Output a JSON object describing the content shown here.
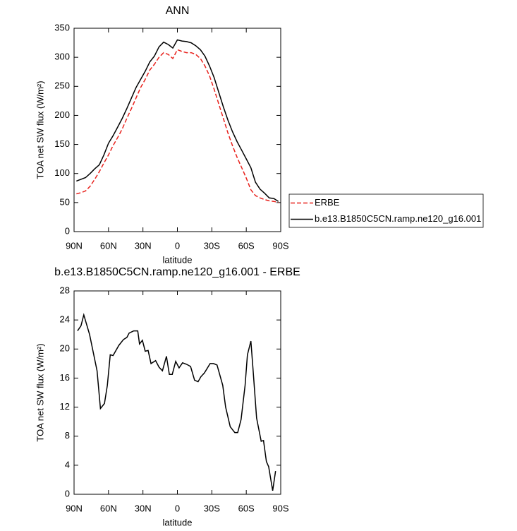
{
  "chart_data": [
    {
      "type": "line",
      "title": "ANN",
      "xlabel": "latitude",
      "ylabel": "TOA net SW flux (W/m²)",
      "x": [
        88,
        84,
        80,
        76,
        72,
        68,
        64,
        60,
        56,
        52,
        48,
        44,
        40,
        36,
        32,
        28,
        24,
        20,
        16,
        12,
        8,
        4,
        0,
        -4,
        -8,
        -12,
        -16,
        -20,
        -24,
        -28,
        -32,
        -36,
        -40,
        -44,
        -48,
        -52,
        -56,
        -60,
        -64,
        -68,
        -72,
        -76,
        -80,
        -84,
        -88
      ],
      "series": [
        {
          "name": "ERBE",
          "color": "#e8211c",
          "dash": true,
          "values": [
            65,
            67,
            70,
            78,
            90,
            103,
            118,
            132,
            148,
            162,
            177,
            195,
            212,
            230,
            248,
            262,
            278,
            288,
            300,
            308,
            305,
            298,
            313,
            310,
            308,
            308,
            305,
            298,
            285,
            268,
            245,
            220,
            195,
            170,
            148,
            128,
            110,
            92,
            72,
            62,
            58,
            55,
            53,
            52,
            50
          ]
        },
        {
          "name": "b.e13.B1850C5CN.ramp.ne120_g16.001",
          "color": "#000000",
          "dash": false,
          "values": [
            87,
            90,
            93,
            100,
            108,
            115,
            132,
            152,
            165,
            180,
            195,
            212,
            230,
            248,
            262,
            276,
            292,
            302,
            318,
            326,
            322,
            316,
            330,
            328,
            327,
            325,
            320,
            313,
            302,
            285,
            265,
            240,
            215,
            192,
            172,
            155,
            140,
            125,
            110,
            85,
            73,
            66,
            58,
            57,
            52
          ]
        }
      ],
      "xlim": [
        90,
        -90
      ],
      "xticks": [
        {
          "value": 90,
          "label": "90N"
        },
        {
          "value": 60,
          "label": "60N"
        },
        {
          "value": 30,
          "label": "30N"
        },
        0,
        {
          "value": -30,
          "label": "30S"
        },
        {
          "value": -60,
          "label": "60S"
        },
        {
          "value": -90,
          "label": "90S"
        }
      ],
      "ylim": [
        0,
        350
      ],
      "yticks": [
        0,
        50,
        100,
        150,
        200,
        250,
        300,
        350
      ],
      "grid": false,
      "legend": "right"
    },
    {
      "type": "line",
      "title": "b.e13.B1850C5CN.ramp.ne120_g16.001 - ERBE",
      "xlabel": "latitude",
      "ylabel": "TOA net SW flux (W/m²)",
      "x": [
        87,
        84,
        81.5,
        76.5,
        70,
        67,
        63.5,
        61,
        58.5,
        56,
        51,
        47,
        44,
        42,
        38,
        34.5,
        33,
        30.5,
        28,
        25.5,
        23,
        19,
        16,
        13,
        9.5,
        7,
        4.5,
        1.5,
        -1.5,
        -4.5,
        -8,
        -11.5,
        -15,
        -18,
        -20.5,
        -23.5,
        -28.5,
        -31.5,
        -34.5,
        -39.5,
        -42,
        -46,
        -50,
        -52.5,
        -55.5,
        -59,
        -61,
        -64,
        -66,
        -69,
        -73,
        -75,
        -77.5,
        -79.5,
        -83,
        -85.5
      ],
      "series": [
        {
          "name": "b.e13.B1850C5CN.ramp.ne120_g16.001 - ERBE",
          "color": "#000000",
          "dash": false,
          "values": [
            22.5,
            23.2,
            24.7,
            22,
            17,
            11.8,
            12.5,
            15,
            19.2,
            19.1,
            20.5,
            21.3,
            21.6,
            22.2,
            22.5,
            22.5,
            20.7,
            21.2,
            19.7,
            19.8,
            18,
            18.4,
            17.5,
            17,
            19,
            16.5,
            16.5,
            18.3,
            17.4,
            18.1,
            17.9,
            17.6,
            15.7,
            15.5,
            16.2,
            16.7,
            18,
            18,
            17.8,
            15,
            12,
            9.3,
            8.5,
            8.5,
            10.3,
            15,
            19.2,
            21.1,
            17,
            10.5,
            7.3,
            7.4,
            4.5,
            3.8,
            0.5,
            3.2
          ]
        }
      ],
      "xlim": [
        90,
        -90
      ],
      "xticks": [
        {
          "value": 90,
          "label": "90N"
        },
        {
          "value": 60,
          "label": "60N"
        },
        {
          "value": 30,
          "label": "30N"
        },
        0,
        {
          "value": -30,
          "label": "30S"
        },
        {
          "value": -60,
          "label": "60S"
        },
        {
          "value": -90,
          "label": "90S"
        }
      ],
      "ylim": [
        0,
        28
      ],
      "yticks": [
        0,
        4,
        8,
        12,
        16,
        20,
        24,
        28
      ],
      "grid": false
    }
  ]
}
